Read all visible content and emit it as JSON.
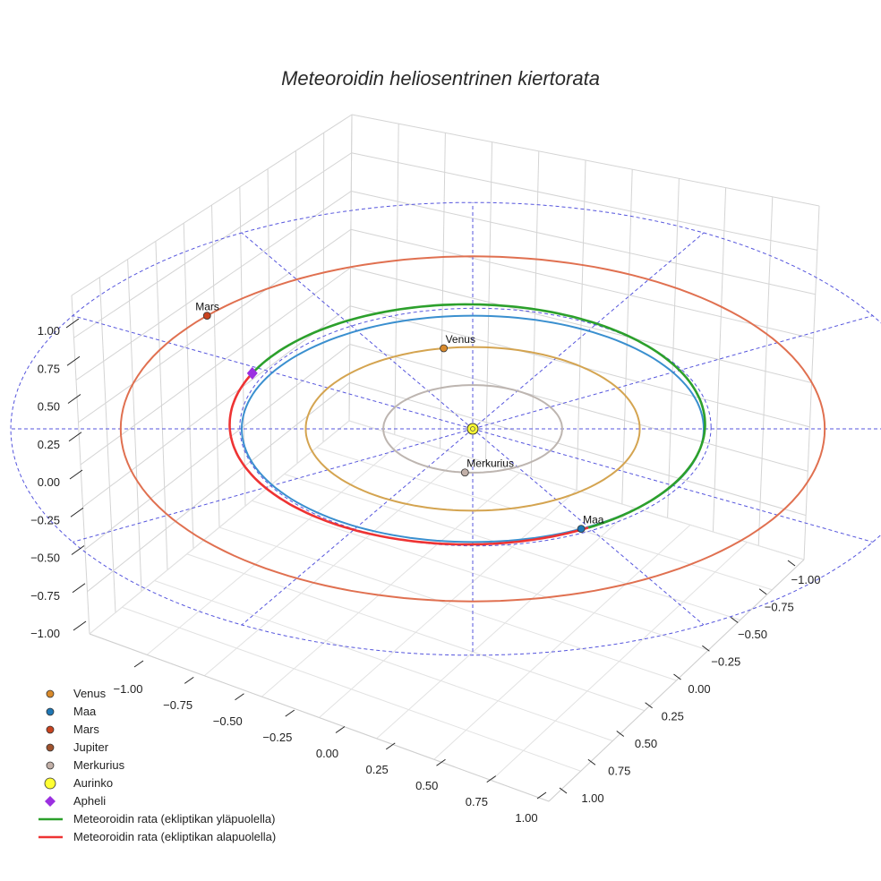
{
  "chart_data": {
    "type": "line3d",
    "title": "Meteoroidin heliosentrinen kiertorata",
    "axes": {
      "x_ticks": [
        "−1.00",
        "−0.75",
        "−0.50",
        "−0.25",
        "0.00",
        "0.25",
        "0.50",
        "0.75",
        "1.00"
      ],
      "y_ticks": [
        "−1.00",
        "−0.75",
        "−0.50",
        "−0.25",
        "0.00",
        "0.25",
        "0.50",
        "0.75",
        "1.00"
      ],
      "z_ticks": [
        "1.00",
        "0.75",
        "0.50",
        "0.25",
        "0.00",
        "−0.25",
        "−0.50",
        "−0.75",
        "−1.00"
      ],
      "x_range": [
        -1,
        1
      ],
      "y_range": [
        -1,
        1
      ],
      "z_range": [
        -1,
        1
      ]
    },
    "orbits": [
      {
        "name": "Merkurius orbit",
        "color": "#bdb5b0",
        "radius_au": 0.387
      },
      {
        "name": "Venus orbit",
        "color": "#d4a450",
        "radius_au": 0.723
      },
      {
        "name": "Maa orbit",
        "color": "#3a8fcf",
        "radius_au": 1.0
      },
      {
        "name": "Mars orbit",
        "color": "#e07050",
        "radius_au": 1.524
      }
    ],
    "planets": [
      {
        "name": "Venus",
        "color": "#d98a2b",
        "angle_deg": 100
      },
      {
        "name": "Maa",
        "color": "#1f77b4",
        "angle_deg": 298
      },
      {
        "name": "Mars",
        "color": "#c8431f",
        "angle_deg": 139
      },
      {
        "name": "Merkurius",
        "color": "#c2b0a8",
        "angle_deg": 265
      }
    ],
    "sun": {
      "name": "Aurinko",
      "color": "#ffff33"
    },
    "aphelion": {
      "name": "Apheli",
      "color": "#9b30e0"
    },
    "meteoroid_orbit": {
      "semi_major_axis_au": 1.05,
      "above_color": "#2ca02c",
      "below_color": "#ee3333"
    },
    "ecliptic_reference": {
      "radius_au": 2.0,
      "color": "#5555dd"
    },
    "legend": [
      {
        "label": "Venus",
        "marker": "circle",
        "color": "#d98a2b"
      },
      {
        "label": "Maa",
        "marker": "circle",
        "color": "#1f77b4"
      },
      {
        "label": "Mars",
        "marker": "circle",
        "color": "#c8431f"
      },
      {
        "label": "Jupiter",
        "marker": "circle",
        "color": "#a0522d"
      },
      {
        "label": "Merkurius",
        "marker": "circle",
        "color": "#c2b0a8"
      },
      {
        "label": "Aurinko",
        "marker": "circle-large",
        "color": "#ffff33"
      },
      {
        "label": "Apheli",
        "marker": "diamond",
        "color": "#9b30e0"
      },
      {
        "label": "Meteoroidin rata (ekliptikan yläpuolella)",
        "marker": "line",
        "color": "#2ca02c"
      },
      {
        "label": "Meteoroidin rata (ekliptikan alapuolella)",
        "marker": "line",
        "color": "#ee3333"
      }
    ]
  }
}
